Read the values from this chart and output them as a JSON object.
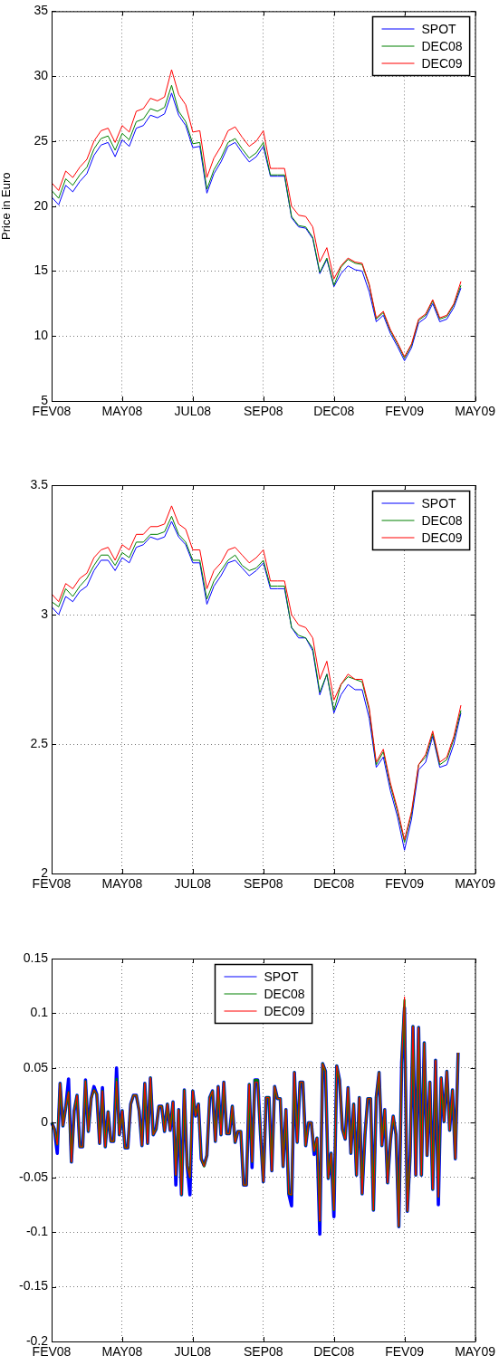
{
  "chart_data": [
    {
      "type": "line",
      "ylabel": "Price in Euro",
      "ylim": [
        5,
        35
      ],
      "yticks": [
        5,
        10,
        15,
        20,
        25,
        30,
        35
      ],
      "grid": true,
      "legend": "top right",
      "categories": [
        "FEV08",
        null,
        null,
        null,
        null,
        null,
        null,
        null,
        null,
        null,
        "MAY08",
        null,
        null,
        null,
        null,
        null,
        null,
        null,
        null,
        null,
        "JUL08",
        null,
        null,
        null,
        null,
        null,
        null,
        null,
        null,
        null,
        "SEP08",
        null,
        null,
        null,
        null,
        null,
        null,
        null,
        null,
        null,
        "DEC08",
        null,
        null,
        null,
        null,
        null,
        null,
        null,
        null,
        null,
        "FEV09",
        null,
        null,
        null,
        null,
        null,
        null,
        null,
        null,
        null,
        "MAY09"
      ],
      "series": [
        {
          "name": "SPOT",
          "color": "#0000ff",
          "values": [
            20.7,
            20.1,
            21.6,
            21.1,
            21.9,
            22.5,
            23.9,
            24.7,
            24.9,
            23.8,
            25.1,
            24.6,
            26.0,
            26.2,
            27.0,
            26.8,
            27.1,
            28.7,
            27.0,
            26.2,
            24.5,
            24.6,
            21.0,
            22.5,
            23.4,
            24.6,
            24.9,
            24.1,
            23.4,
            23.8,
            24.6,
            22.3,
            22.3,
            22.3,
            19.1,
            18.4,
            18.3,
            17.5,
            14.8,
            15.9,
            13.8,
            14.8,
            15.4,
            15.1,
            15.0,
            13.4,
            11.1,
            11.6,
            10.2,
            9.2,
            8.1,
            9.1,
            11.0,
            11.4,
            12.5,
            11.1,
            11.3,
            12.2,
            13.7,
            null,
            null
          ]
        },
        {
          "name": "DEC08",
          "color": "#008000",
          "values": [
            21.2,
            20.6,
            22.1,
            21.6,
            22.4,
            23.0,
            24.4,
            25.2,
            25.4,
            24.3,
            25.6,
            25.1,
            26.5,
            26.7,
            27.5,
            27.3,
            27.6,
            29.3,
            27.3,
            26.5,
            24.8,
            24.9,
            21.3,
            22.8,
            23.7,
            24.9,
            25.2,
            24.4,
            23.7,
            24.1,
            24.9,
            22.4,
            22.4,
            22.4,
            19.2,
            18.5,
            18.4,
            17.6,
            14.9,
            16.0,
            13.9,
            15.3,
            15.9,
            15.6,
            15.5,
            13.9,
            11.3,
            11.8,
            10.4,
            9.4,
            8.3,
            9.3,
            11.2,
            11.6,
            12.7,
            11.3,
            11.5,
            12.4,
            13.9,
            null,
            null
          ]
        },
        {
          "name": "DEC09",
          "color": "#ff0000",
          "values": [
            21.8,
            21.2,
            22.7,
            22.2,
            23.0,
            23.6,
            25.0,
            25.8,
            26.0,
            24.9,
            26.2,
            25.7,
            27.3,
            27.5,
            28.3,
            28.1,
            28.4,
            30.5,
            28.6,
            27.8,
            25.7,
            25.8,
            22.2,
            23.7,
            24.6,
            25.8,
            26.1,
            25.3,
            24.6,
            25.0,
            25.8,
            22.9,
            22.9,
            22.9,
            20.0,
            19.3,
            19.2,
            18.4,
            15.7,
            16.8,
            14.4,
            15.4,
            16.0,
            15.7,
            15.6,
            14.0,
            11.4,
            11.9,
            10.5,
            9.5,
            8.4,
            9.4,
            11.3,
            11.7,
            12.8,
            11.4,
            11.6,
            12.5,
            14.2,
            null,
            null
          ]
        }
      ]
    },
    {
      "type": "line",
      "ylim": [
        2,
        3.5
      ],
      "yticks": [
        2,
        2.5,
        3,
        3.5
      ],
      "grid": true,
      "legend": "top right",
      "categories": [
        "FEV08",
        null,
        null,
        null,
        null,
        null,
        null,
        null,
        null,
        null,
        "MAY08",
        null,
        null,
        null,
        null,
        null,
        null,
        null,
        null,
        null,
        "JUL08",
        null,
        null,
        null,
        null,
        null,
        null,
        null,
        null,
        null,
        "SEP08",
        null,
        null,
        null,
        null,
        null,
        null,
        null,
        null,
        null,
        "DEC08",
        null,
        null,
        null,
        null,
        null,
        null,
        null,
        null,
        null,
        "FEV09",
        null,
        null,
        null,
        null,
        null,
        null,
        null,
        null,
        null,
        "MAY09"
      ],
      "series": [
        {
          "name": "SPOT",
          "color": "#0000ff",
          "values": [
            3.03,
            3.0,
            3.07,
            3.05,
            3.09,
            3.11,
            3.17,
            3.21,
            3.21,
            3.17,
            3.22,
            3.2,
            3.26,
            3.27,
            3.3,
            3.29,
            3.3,
            3.36,
            3.3,
            3.27,
            3.2,
            3.2,
            3.04,
            3.11,
            3.15,
            3.2,
            3.21,
            3.18,
            3.15,
            3.17,
            3.2,
            3.1,
            3.1,
            3.1,
            2.95,
            2.91,
            2.91,
            2.86,
            2.69,
            2.77,
            2.62,
            2.69,
            2.73,
            2.71,
            2.71,
            2.6,
            2.41,
            2.45,
            2.32,
            2.22,
            2.09,
            2.21,
            2.4,
            2.43,
            2.53,
            2.41,
            2.42,
            2.5,
            2.62,
            null,
            null
          ]
        },
        {
          "name": "DEC08",
          "color": "#008000",
          "values": [
            3.05,
            3.03,
            3.1,
            3.07,
            3.11,
            3.14,
            3.19,
            3.23,
            3.23,
            3.19,
            3.24,
            3.22,
            3.28,
            3.28,
            3.31,
            3.31,
            3.32,
            3.38,
            3.31,
            3.28,
            3.21,
            3.21,
            3.06,
            3.13,
            3.17,
            3.21,
            3.23,
            3.19,
            3.17,
            3.18,
            3.21,
            3.11,
            3.11,
            3.11,
            2.95,
            2.92,
            2.91,
            2.87,
            2.7,
            2.77,
            2.63,
            2.73,
            2.76,
            2.75,
            2.74,
            2.63,
            2.42,
            2.47,
            2.34,
            2.24,
            2.12,
            2.23,
            2.42,
            2.45,
            2.54,
            2.42,
            2.44,
            2.52,
            2.63,
            null,
            null
          ]
        },
        {
          "name": "DEC09",
          "color": "#ff0000",
          "values": [
            3.08,
            3.05,
            3.12,
            3.1,
            3.14,
            3.16,
            3.22,
            3.25,
            3.26,
            3.21,
            3.27,
            3.25,
            3.31,
            3.31,
            3.34,
            3.34,
            3.35,
            3.42,
            3.35,
            3.33,
            3.25,
            3.25,
            3.1,
            3.17,
            3.2,
            3.25,
            3.26,
            3.23,
            3.2,
            3.22,
            3.25,
            3.13,
            3.13,
            3.13,
            3.0,
            2.96,
            2.95,
            2.91,
            2.75,
            2.82,
            2.67,
            2.73,
            2.77,
            2.75,
            2.75,
            2.64,
            2.43,
            2.48,
            2.35,
            2.25,
            2.13,
            2.24,
            2.42,
            2.46,
            2.55,
            2.43,
            2.45,
            2.53,
            2.65,
            null,
            null
          ]
        }
      ]
    },
    {
      "type": "line",
      "ylim": [
        -0.2,
        0.15
      ],
      "yticks": [
        -0.2,
        -0.15,
        -0.1,
        -0.05,
        0,
        0.05,
        0.1,
        0.15
      ],
      "grid": true,
      "legend": "top",
      "categories": [
        "FEV08",
        null,
        null,
        null,
        null,
        null,
        null,
        null,
        null,
        null,
        null,
        null,
        null,
        null,
        null,
        null,
        null,
        null,
        null,
        null,
        null,
        null,
        null,
        null,
        null,
        "MAY08",
        null,
        null,
        null,
        null,
        null,
        null,
        null,
        null,
        null,
        null,
        null,
        null,
        null,
        null,
        null,
        null,
        null,
        null,
        null,
        null,
        null,
        null,
        null,
        null,
        "JUL08",
        null,
        null,
        null,
        null,
        null,
        null,
        null,
        null,
        null,
        null,
        null,
        null,
        null,
        null,
        null,
        null,
        null,
        null,
        null,
        null,
        null,
        null,
        null,
        null,
        "SEP08",
        null,
        null,
        null,
        null,
        null,
        null,
        null,
        null,
        null,
        null,
        null,
        null,
        null,
        null,
        null,
        null,
        null,
        null,
        null,
        null,
        null,
        null,
        null,
        null,
        "DEC08",
        null,
        null,
        null,
        null,
        null,
        null,
        null,
        null,
        null,
        null,
        null,
        null,
        null,
        null,
        null,
        null,
        null,
        null,
        null,
        null,
        null,
        null,
        null,
        null,
        "FEV09",
        null,
        null,
        null,
        null,
        null,
        null,
        null,
        null,
        null,
        null,
        null,
        null,
        null,
        null,
        null,
        null,
        null,
        null,
        null,
        null,
        null,
        null,
        null,
        null,
        "MAY09"
      ],
      "series": [
        {
          "name": "SPOT",
          "color": "#0000ff",
          "values": [
            0,
            -0.006,
            -0.028,
            0.036,
            -0.003,
            0.014,
            0.04,
            -0.036,
            0.011,
            0.025,
            -0.022,
            -0.022,
            0.039,
            -0.008,
            0.022,
            0.033,
            0.026,
            -0.019,
            0.032,
            -0.022,
            0.01,
            -0.017,
            -0.017,
            0.05,
            -0.011,
            0.011,
            -0.023,
            -0.023,
            0.017,
            0.025,
            0.025,
            0.011,
            -0.021,
            0.036,
            -0.019,
            0.041,
            -0.011,
            -0.006,
            0.015,
            0.015,
            -0.008,
            0.017,
            -0.007,
            0.019,
            -0.057,
            0.012,
            -0.066,
            0.03,
            -0.039,
            -0.066,
            0.029,
            0.006,
            0.017,
            -0.033,
            -0.039,
            -0.03,
            0.023,
            0.029,
            -0.017,
            0.033,
            -0.011,
            0.037,
            -0.01,
            -0.01,
            0.015,
            -0.018,
            -0.008,
            -0.008,
            -0.057,
            -0.057,
            0.035,
            -0.041,
            0.039,
            0.039,
            -0.011,
            -0.054,
            0.023,
            0.023,
            -0.044,
            0.033,
            0.022,
            0.022,
            -0.04,
            0.012,
            -0.065,
            -0.076,
            0.046,
            -0.018,
            0.037,
            0.037,
            -0.021,
            0,
            0,
            -0.029,
            -0.014,
            -0.102,
            0.054,
            0.047,
            -0.051,
            -0.028,
            -0.086,
            0.052,
            0.039,
            -0.006,
            -0.015,
            0.032,
            -0.028,
            0.017,
            -0.048,
            0.023,
            -0.065,
            -0.011,
            0.022,
            0.022,
            -0.08,
            0.023,
            0.046,
            -0.021,
            0.012,
            -0.055,
            -0.017,
            0.006,
            -0.011,
            -0.095,
            0.055,
            0.105,
            -0.081,
            -0.03,
            0.088,
            -0.048,
            0.087,
            -0.048,
            0.073,
            -0.03,
            0.037,
            -0.061,
            0.057,
            -0.075,
            0.041,
            0.001,
            0.047,
            -0.007,
            0.03,
            -0.033,
            0.064,
            null,
            null,
            null,
            null,
            null,
            null
          ]
        },
        {
          "name": "DEC08",
          "color": "#008000",
          "values": [
            0,
            -0.006,
            -0.02,
            0.036,
            -0.003,
            0.014,
            0.028,
            -0.036,
            0.011,
            0.025,
            -0.022,
            -0.022,
            0.038,
            -0.008,
            0.022,
            0.03,
            0.026,
            -0.019,
            0.029,
            -0.022,
            0.01,
            -0.017,
            -0.017,
            0.04,
            -0.011,
            0.011,
            -0.023,
            -0.023,
            0.017,
            0.025,
            0.025,
            0.011,
            -0.021,
            0.036,
            -0.019,
            0.041,
            -0.011,
            -0.006,
            0.015,
            0.015,
            -0.008,
            0.017,
            -0.007,
            0.019,
            -0.048,
            0.012,
            -0.066,
            0.03,
            -0.039,
            -0.05,
            0.029,
            0.006,
            0.017,
            -0.033,
            -0.04,
            -0.03,
            0.023,
            0.029,
            -0.017,
            0.033,
            -0.011,
            0.037,
            -0.01,
            -0.01,
            0.015,
            -0.018,
            -0.008,
            -0.008,
            -0.057,
            -0.057,
            0.035,
            -0.036,
            0.039,
            0.039,
            -0.011,
            -0.054,
            0.023,
            0.023,
            -0.044,
            0.033,
            0.022,
            0.022,
            -0.04,
            0.012,
            -0.065,
            -0.066,
            0.046,
            -0.018,
            0.037,
            0.037,
            -0.021,
            0,
            0,
            -0.026,
            -0.014,
            -0.09,
            0.054,
            0.047,
            -0.051,
            -0.028,
            -0.08,
            0.052,
            0.039,
            -0.006,
            -0.015,
            0.032,
            -0.028,
            0.017,
            -0.048,
            0.023,
            -0.065,
            -0.011,
            0.022,
            0.022,
            -0.08,
            0.023,
            0.046,
            -0.021,
            0.012,
            -0.055,
            -0.017,
            0.006,
            -0.011,
            -0.095,
            0.055,
            0.112,
            -0.081,
            -0.03,
            0.088,
            -0.048,
            0.087,
            -0.048,
            0.073,
            -0.03,
            0.037,
            -0.061,
            0.057,
            -0.068,
            0.041,
            0.001,
            0.047,
            -0.007,
            0.03,
            -0.033,
            0.064,
            null,
            null,
            null,
            null,
            null,
            null
          ]
        },
        {
          "name": "DEC09",
          "color": "#ff0000",
          "values": [
            0,
            -0.006,
            -0.02,
            0.036,
            -0.003,
            0.014,
            0.028,
            -0.036,
            0.011,
            0.025,
            -0.022,
            -0.022,
            0.038,
            -0.008,
            0.022,
            0.03,
            0.026,
            -0.019,
            0.029,
            -0.022,
            0.01,
            -0.017,
            -0.017,
            0.038,
            -0.011,
            0.011,
            -0.023,
            -0.023,
            0.017,
            0.025,
            0.025,
            0.011,
            -0.021,
            0.036,
            -0.019,
            0.041,
            -0.011,
            -0.006,
            0.015,
            0.015,
            -0.008,
            0.017,
            -0.007,
            0.019,
            -0.048,
            0.012,
            -0.066,
            0.03,
            -0.039,
            -0.05,
            0.029,
            0.006,
            0.017,
            -0.033,
            -0.04,
            -0.03,
            0.023,
            0.029,
            -0.017,
            0.033,
            -0.011,
            0.037,
            -0.01,
            -0.01,
            0.015,
            -0.018,
            -0.008,
            -0.008,
            -0.057,
            -0.057,
            0.035,
            -0.036,
            0.037,
            0.037,
            -0.011,
            -0.054,
            0.023,
            0.023,
            -0.044,
            0.033,
            0.022,
            0.022,
            -0.04,
            0.012,
            -0.065,
            -0.066,
            0.046,
            -0.018,
            0.037,
            0.037,
            -0.021,
            0,
            0,
            -0.026,
            -0.014,
            -0.09,
            0.054,
            0.047,
            -0.051,
            -0.028,
            -0.08,
            0.052,
            0.039,
            -0.006,
            -0.015,
            0.032,
            -0.028,
            0.017,
            -0.048,
            0.023,
            -0.065,
            -0.011,
            0.022,
            0.022,
            -0.08,
            0.023,
            0.046,
            -0.021,
            0.012,
            -0.055,
            -0.017,
            0.006,
            -0.011,
            -0.095,
            0.055,
            0.115,
            -0.081,
            -0.03,
            0.088,
            -0.048,
            0.087,
            -0.048,
            0.073,
            -0.03,
            0.037,
            -0.061,
            0.057,
            -0.068,
            0.041,
            0.001,
            0.047,
            -0.007,
            0.03,
            -0.033,
            0.064,
            null,
            null,
            null,
            null,
            null,
            null
          ]
        }
      ]
    }
  ]
}
